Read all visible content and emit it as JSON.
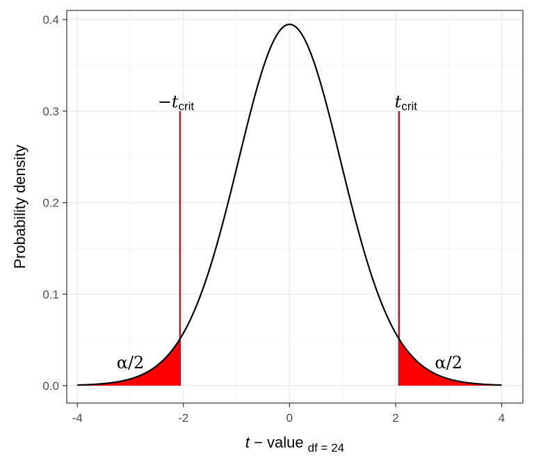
{
  "chart_data": {
    "type": "area",
    "distribution": "t",
    "df": 24,
    "x_range": [
      -4,
      4
    ],
    "xlim": [
      -4.2,
      4.4
    ],
    "ylim": [
      -0.019,
      0.41
    ],
    "x_ticks": [
      -4,
      -2,
      0,
      2,
      4
    ],
    "x_tick_labels": [
      "-4",
      "-2",
      "0",
      "2",
      "4"
    ],
    "y_ticks": [
      0.0,
      0.1,
      0.2,
      0.3,
      0.4
    ],
    "y_tick_labels": [
      "0.0",
      "0.1",
      "0.2",
      "0.3",
      "0.4"
    ],
    "t_crit": 2.064,
    "crit_line_top": 0.3,
    "xlabel": {
      "italic": "t",
      "main": " − value",
      "sub": "df = 24"
    },
    "ylabel": "Probability density",
    "annotations": {
      "neg_crit": {
        "prefix": "−",
        "italic": "t",
        "sub": "crit",
        "x": -2.064,
        "y": 0.31
      },
      "pos_crit": {
        "italic": "t",
        "sub": "crit",
        "x": 2.064,
        "y": 0.31
      },
      "left_tail": {
        "text": "α/2",
        "x": -3.0,
        "y": 0.025
      },
      "right_tail": {
        "text": "α/2",
        "x": 3.0,
        "y": 0.025
      }
    },
    "grid": true,
    "theme": "bw",
    "colors": {
      "curve": "#000000",
      "tail_fill": "#ff0000",
      "crit_line": "#b2182b",
      "grid_major": "#ebebeb",
      "grid_minor": "#f5f5f5",
      "panel_border": "#333333"
    }
  }
}
